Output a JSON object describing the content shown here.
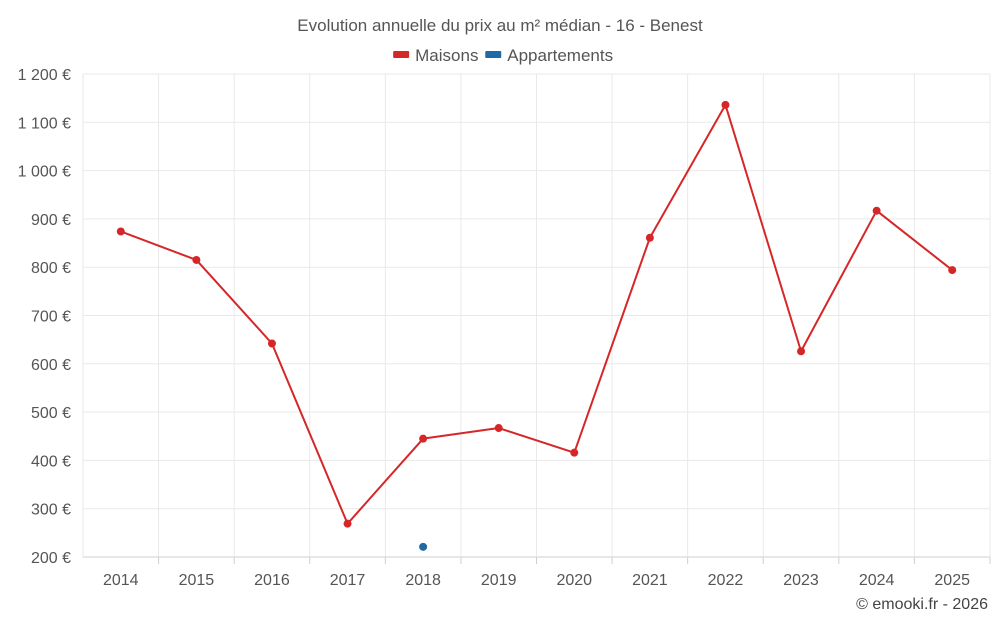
{
  "chart_data": {
    "type": "line",
    "title": "Evolution annuelle du prix au m² médian - 16 - Benest",
    "categories": [
      "2014",
      "2015",
      "2016",
      "2017",
      "2018",
      "2019",
      "2020",
      "2021",
      "2022",
      "2023",
      "2024",
      "2025"
    ],
    "series": [
      {
        "name": "Maisons",
        "color": "#d62728",
        "values": [
          874,
          815,
          642,
          269,
          445,
          467,
          416,
          861,
          1136,
          626,
          917,
          794
        ]
      },
      {
        "name": "Appartements",
        "color": "#1f6aa5",
        "values": [
          null,
          null,
          null,
          null,
          221,
          null,
          null,
          null,
          null,
          null,
          null,
          null
        ]
      }
    ],
    "ylim": [
      200,
      1200
    ],
    "yticks": [
      200,
      300,
      400,
      500,
      600,
      700,
      800,
      900,
      1000,
      1100,
      1200
    ],
    "ytick_labels": [
      "200 €",
      "300 €",
      "400 €",
      "500 €",
      "600 €",
      "700 €",
      "800 €",
      "900 €",
      "1 000 €",
      "1 100 €",
      "1 200 €"
    ],
    "legend_position": "top-center",
    "grid": true
  },
  "credit": "© emooki.fr - 2026"
}
